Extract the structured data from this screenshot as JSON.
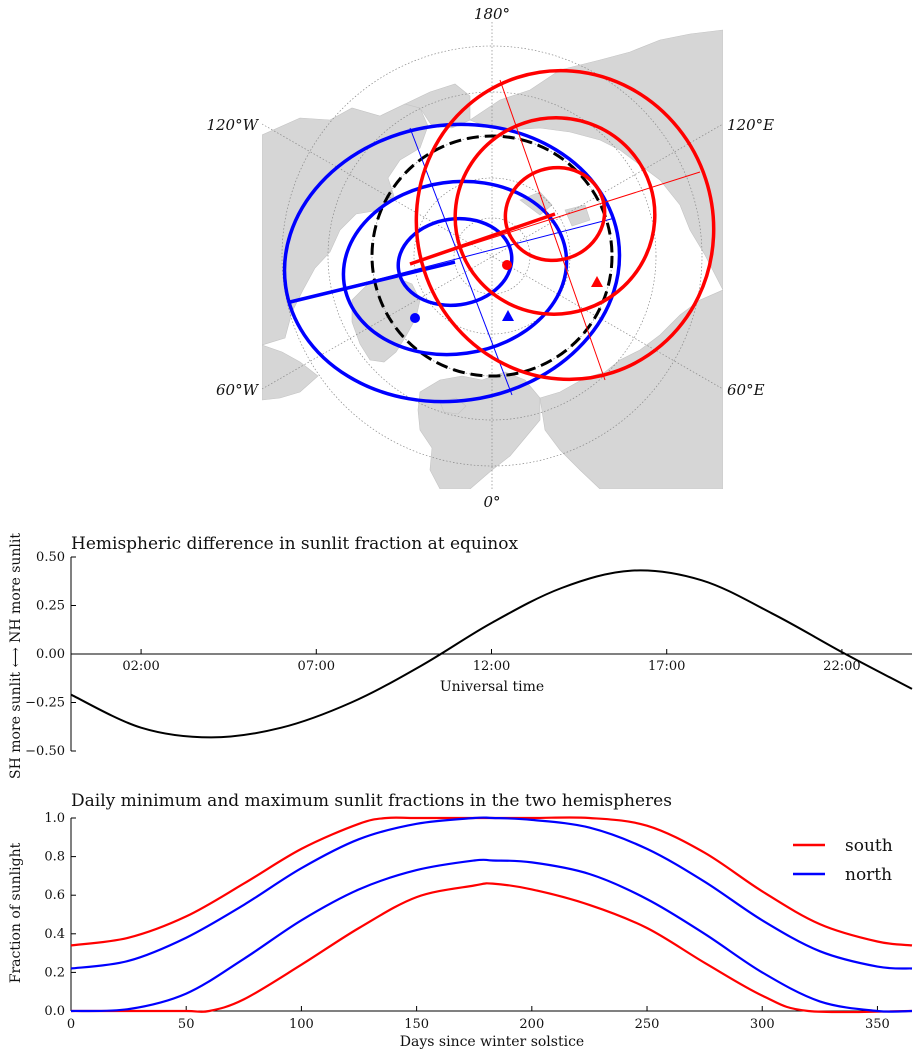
{
  "chart_data": [
    {
      "type": "map",
      "projection": "north-polar-stereographic",
      "meridian_labels": [
        {
          "id": "180",
          "text": "180°"
        },
        {
          "id": "120W",
          "text": "120°W"
        },
        {
          "id": "120E",
          "text": "120°E"
        },
        {
          "id": "60W",
          "text": "60°W"
        },
        {
          "id": "60E",
          "text": "60°E"
        },
        {
          "id": "0",
          "text": "0°"
        }
      ],
      "grid": "dotted",
      "colors": {
        "land": "#d6d6d6",
        "grid": "#888888",
        "north": "#0000ff",
        "south": "#ff0000",
        "equator_circle": "#000000"
      }
    },
    {
      "type": "line",
      "title": "Hemispheric difference in sunlit fraction at equinox",
      "xlabel": "Universal time",
      "ylabel": "SH more sunlit ⟷ NH more sunlit",
      "xlim": [
        0,
        24
      ],
      "ylim": [
        -0.5,
        0.5
      ],
      "x_ticks": [
        {
          "value": 2,
          "label": "02:00"
        },
        {
          "value": 7,
          "label": "07:00"
        },
        {
          "value": 12,
          "label": "12:00"
        },
        {
          "value": 17,
          "label": "17:00"
        },
        {
          "value": 22,
          "label": "22:00"
        }
      ],
      "y_ticks": [
        {
          "value": 0.5,
          "label": "0.50"
        },
        {
          "value": 0.25,
          "label": "0.25"
        },
        {
          "value": 0,
          "label": "0.00"
        },
        {
          "value": -0.25,
          "label": "−0.25"
        },
        {
          "value": -0.5,
          "label": "−0.50"
        }
      ],
      "series": [
        {
          "color": "#000000",
          "x": [
            0,
            2,
            4,
            6,
            8,
            10,
            12,
            14,
            16,
            18,
            20,
            22,
            24
          ],
          "values": [
            -0.21,
            -0.38,
            -0.43,
            -0.38,
            -0.25,
            -0.06,
            0.16,
            0.34,
            0.43,
            0.38,
            0.21,
            0.01,
            -0.18
          ]
        }
      ]
    },
    {
      "type": "line",
      "title": "Daily minimum and maximum sunlit fractions in the two hemispheres",
      "xlabel": "Days since winter solstice",
      "ylabel": "Fraction of sunlight",
      "xlim": [
        0,
        365
      ],
      "ylim": [
        0,
        1
      ],
      "x_ticks": [
        {
          "value": 0,
          "label": "0"
        },
        {
          "value": 50,
          "label": "50"
        },
        {
          "value": 100,
          "label": "100"
        },
        {
          "value": 150,
          "label": "150"
        },
        {
          "value": 200,
          "label": "200"
        },
        {
          "value": 250,
          "label": "250"
        },
        {
          "value": 300,
          "label": "300"
        },
        {
          "value": 350,
          "label": "350"
        }
      ],
      "y_ticks": [
        {
          "value": 0,
          "label": "0.0"
        },
        {
          "value": 0.2,
          "label": "0.2"
        },
        {
          "value": 0.4,
          "label": "0.4"
        },
        {
          "value": 0.6,
          "label": "0.6"
        },
        {
          "value": 0.8,
          "label": "0.8"
        },
        {
          "value": 1,
          "label": "1.0"
        }
      ],
      "legend": {
        "placement": "top-right",
        "entries": [
          {
            "label": "south",
            "color": "#ff0000"
          },
          {
            "label": "north",
            "color": "#0000ff"
          }
        ]
      },
      "series": [
        {
          "hemisphere": "south",
          "color": "#ff0000",
          "x": [
            0,
            25,
            50,
            75,
            100,
            125,
            137,
            150,
            175,
            200,
            225,
            250,
            275,
            300,
            325,
            350,
            365
          ],
          "values": [
            0.34,
            0.38,
            0.49,
            0.66,
            0.84,
            0.97,
            1.0,
            1.0,
            1.0,
            1.0,
            1.0,
            0.96,
            0.82,
            0.62,
            0.45,
            0.36,
            0.34
          ]
        },
        {
          "hemisphere": "south",
          "color": "#ff0000",
          "x": [
            0,
            25,
            50,
            60,
            75,
            100,
            125,
            150,
            175,
            183,
            200,
            225,
            250,
            275,
            300,
            320,
            365
          ],
          "values": [
            0.0,
            0.0,
            0.0,
            0.0,
            0.06,
            0.24,
            0.43,
            0.59,
            0.65,
            0.66,
            0.63,
            0.55,
            0.43,
            0.25,
            0.08,
            0.0,
            0.0
          ]
        },
        {
          "hemisphere": "north",
          "color": "#0000ff",
          "x": [
            0,
            25,
            50,
            75,
            100,
            125,
            150,
            175,
            183,
            200,
            225,
            250,
            275,
            300,
            325,
            350,
            365
          ],
          "values": [
            0.22,
            0.26,
            0.38,
            0.55,
            0.74,
            0.89,
            0.97,
            1.0,
            1.0,
            0.99,
            0.95,
            0.84,
            0.67,
            0.47,
            0.31,
            0.23,
            0.22
          ]
        },
        {
          "hemisphere": "north",
          "color": "#0000ff",
          "x": [
            0,
            25,
            50,
            75,
            100,
            125,
            150,
            175,
            183,
            200,
            225,
            250,
            275,
            300,
            325,
            350,
            365
          ],
          "values": [
            0.0,
            0.01,
            0.09,
            0.27,
            0.47,
            0.63,
            0.73,
            0.78,
            0.78,
            0.77,
            0.71,
            0.58,
            0.4,
            0.2,
            0.05,
            0.0,
            0.0
          ]
        }
      ]
    }
  ]
}
